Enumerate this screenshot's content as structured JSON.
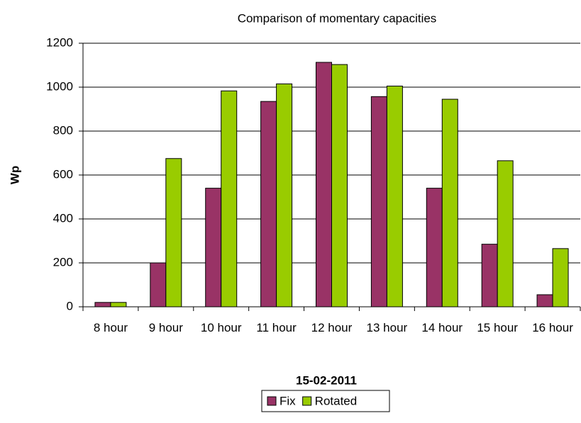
{
  "chart_data": {
    "type": "bar",
    "title": "Comparison of momentary capacities",
    "x_label": "15-02-2011",
    "y_label": "Wp",
    "categories": [
      "8 hour",
      "9 hour",
      "10 hour",
      "11 hour",
      "12 hour",
      "13 hour",
      "14 hour",
      "15 hour",
      "16 hour"
    ],
    "series": [
      {
        "name": "Fix",
        "color": "#993366",
        "values": [
          20,
          200,
          540,
          935,
          1113,
          957,
          540,
          285,
          55
        ]
      },
      {
        "name": "Rotated",
        "color": "#99cc00",
        "values": [
          20,
          675,
          983,
          1015,
          1103,
          1005,
          945,
          665,
          265
        ]
      }
    ],
    "ylim": [
      0,
      1200
    ],
    "yticks": [
      0,
      200,
      400,
      600,
      800,
      1000,
      1200
    ],
    "grid": true,
    "legend": "bottom"
  }
}
